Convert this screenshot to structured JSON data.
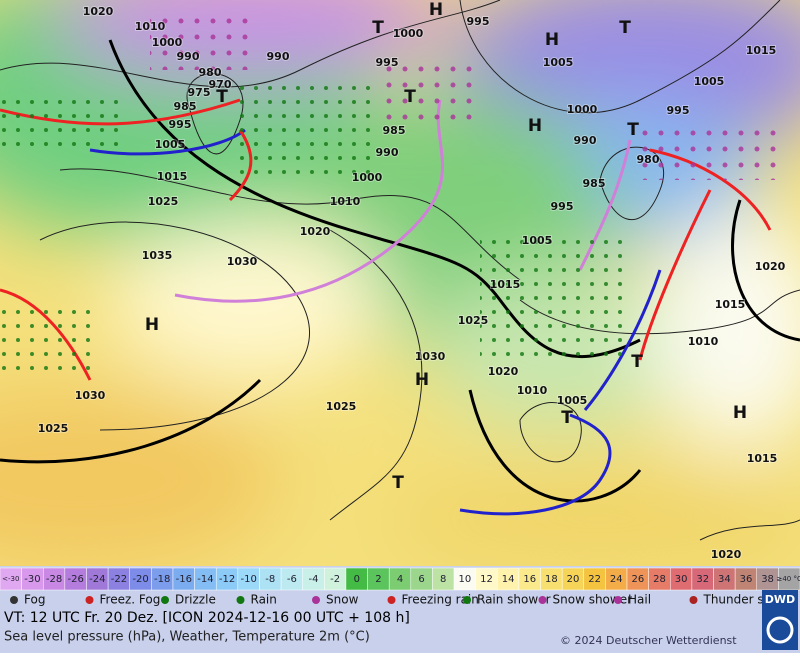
{
  "map": {
    "pressure_labels": [
      "1020",
      "1010",
      "1000",
      "990",
      "980",
      "975",
      "970",
      "985",
      "995",
      "1005",
      "1015",
      "1025",
      "1035",
      "1030",
      "990",
      "1000",
      "995",
      "985",
      "990",
      "1000",
      "1010",
      "1020",
      "1015",
      "1025",
      "1030",
      "1020",
      "1010",
      "1005",
      "1025",
      "1030",
      "1025",
      "1005",
      "1000",
      "990",
      "985",
      "995",
      "1005",
      "980",
      "995",
      "1005",
      "1015",
      "1020",
      "1015",
      "1010",
      "1015",
      "1020",
      "995"
    ],
    "pressure_centers": [
      "T",
      "H",
      "H",
      "T",
      "T",
      "T",
      "H",
      "T",
      "H",
      "H",
      "T",
      "T",
      "T",
      "H"
    ]
  },
  "legend": {
    "temperature_scale": [
      "<-30",
      -30,
      -28,
      -26,
      -24,
      -22,
      -20,
      -18,
      -16,
      -14,
      -12,
      -10,
      -8,
      -6,
      -4,
      -2,
      0,
      2,
      4,
      6,
      8,
      10,
      12,
      14,
      16,
      18,
      20,
      22,
      24,
      26,
      28,
      30,
      32,
      34,
      36,
      38,
      "≥40 °C"
    ],
    "temperature_colors": [
      "#e0a8f0",
      "#d898ec",
      "#c888e4",
      "#b47cdc",
      "#a078d8",
      "#8c80e0",
      "#7c8ce8",
      "#7c9cec",
      "#7cacf0",
      "#84bcf4",
      "#8ccaf8",
      "#9cd8f8",
      "#ace2f4",
      "#bceaf0",
      "#c8f0e8",
      "#d0f2dc",
      "#44bb44",
      "#5cc45c",
      "#7ccc72",
      "#9cd68c",
      "#bce2a4",
      "#fbfbf2",
      "#fff8c8",
      "#fff2ac",
      "#faea8c",
      "#f8e070",
      "#f6d458",
      "#f4c440",
      "#f4ac48",
      "#ee9458",
      "#e67c68",
      "#de6c70",
      "#d66878",
      "#ce7474",
      "#c08474",
      "#b09494",
      "#a4a4a4"
    ],
    "weather": [
      "Fog",
      "Freez. Fog",
      "Drizzle",
      "Rain",
      "Snow",
      "Freezing rain",
      "Rain shower",
      "Snow shower",
      "Hail",
      "Thunder storm"
    ]
  },
  "footer": {
    "valid_time": "VT: 12 UTC Fr.  20 Dez. [ICON 2024-12-16  00 UTC + 108 h]",
    "description": "Sea level pressure (hPa), Weather, Temperature 2m (°C)",
    "copyright": "© 2024 Deutscher Wetterdienst",
    "logo": "DWD"
  }
}
